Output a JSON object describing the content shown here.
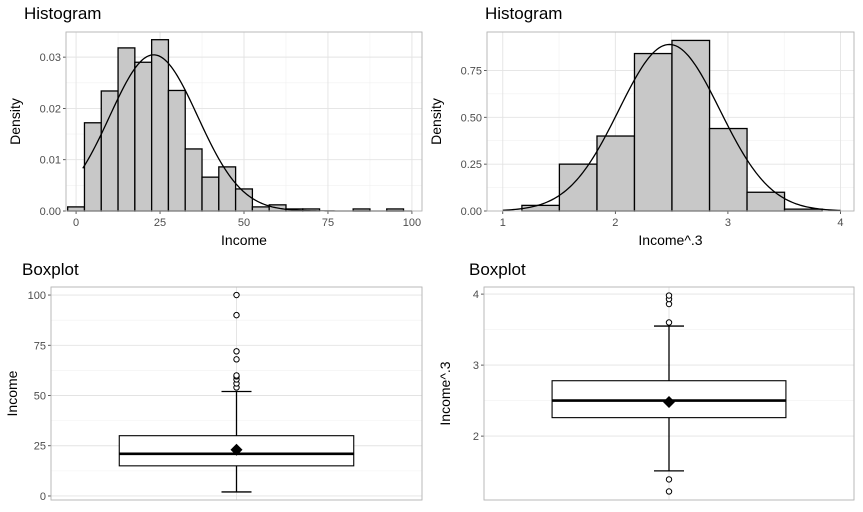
{
  "chart_data": [
    {
      "type": "histogram",
      "title": "Histogram",
      "xlabel": "Income",
      "ylabel": "Density",
      "xlim": [
        -3,
        103
      ],
      "ylim": [
        0,
        0.0349
      ],
      "xticks": [
        "0",
        "25",
        "50",
        "75",
        "100"
      ],
      "yticks": [
        "0.00",
        "0.01",
        "0.02",
        "0.03"
      ],
      "grid": true,
      "bin_width": 5,
      "bins": [
        {
          "x0": -2.5,
          "x1": 2.5,
          "density": 0.0008
        },
        {
          "x0": 2.5,
          "x1": 7.5,
          "density": 0.0172
        },
        {
          "x0": 7.5,
          "x1": 12.5,
          "density": 0.0234
        },
        {
          "x0": 12.5,
          "x1": 17.5,
          "density": 0.0318
        },
        {
          "x0": 17.5,
          "x1": 22.5,
          "density": 0.029
        },
        {
          "x0": 22.5,
          "x1": 27.5,
          "density": 0.0334
        },
        {
          "x0": 27.5,
          "x1": 32.5,
          "density": 0.0235
        },
        {
          "x0": 32.5,
          "x1": 37.5,
          "density": 0.0121
        },
        {
          "x0": 37.5,
          "x1": 42.5,
          "density": 0.0066
        },
        {
          "x0": 42.5,
          "x1": 47.5,
          "density": 0.0086
        },
        {
          "x0": 47.5,
          "x1": 52.5,
          "density": 0.0043
        },
        {
          "x0": 52.5,
          "x1": 57.5,
          "density": 0.0008
        },
        {
          "x0": 57.5,
          "x1": 62.5,
          "density": 0.0012
        },
        {
          "x0": 62.5,
          "x1": 67.5,
          "density": 0.0004
        },
        {
          "x0": 67.5,
          "x1": 72.5,
          "density": 0.0004
        },
        {
          "x0": 82.5,
          "x1": 87.5,
          "density": 0.0004
        },
        {
          "x0": 92.5,
          "x1": 97.5,
          "density": 0.0004
        }
      ],
      "curve": {
        "type": "normal",
        "mean": 23.1,
        "sd": 13.1,
        "x_from": 2,
        "x_to": 100
      }
    },
    {
      "type": "histogram",
      "title": "Histogram",
      "xlabel": "Income^.3",
      "ylabel": "Density",
      "xlim": [
        0.86,
        4.12
      ],
      "ylim": [
        0,
        0.955
      ],
      "xticks": [
        "1",
        "2",
        "3",
        "4"
      ],
      "yticks": [
        "0.00",
        "0.25",
        "0.50",
        "0.75"
      ],
      "grid": true,
      "bin_width": 0.333,
      "bins": [
        {
          "x0": 1.17,
          "x1": 1.503,
          "density": 0.03
        },
        {
          "x0": 1.503,
          "x1": 1.837,
          "density": 0.25
        },
        {
          "x0": 1.837,
          "x1": 2.17,
          "density": 0.4
        },
        {
          "x0": 2.17,
          "x1": 2.503,
          "density": 0.84
        },
        {
          "x0": 2.503,
          "x1": 2.837,
          "density": 0.91
        },
        {
          "x0": 2.837,
          "x1": 3.17,
          "density": 0.44
        },
        {
          "x0": 3.17,
          "x1": 3.503,
          "density": 0.1
        },
        {
          "x0": 3.503,
          "x1": 3.837,
          "density": 0.01
        }
      ],
      "curve": {
        "type": "normal",
        "mean": 2.48,
        "sd": 0.449,
        "x_from": 1.0,
        "x_to": 4.0
      }
    },
    {
      "type": "boxplot",
      "title": "Boxplot",
      "ylabel": "Income",
      "ylim": [
        -2,
        104
      ],
      "yticks": [
        "0",
        "25",
        "50",
        "75",
        "100"
      ],
      "grid": true,
      "box": {
        "q1": 15,
        "median": 21,
        "q3": 30,
        "whisker_low": 2,
        "whisker_high": 52,
        "mean": 23
      },
      "outliers": [
        54,
        56,
        58,
        59.5,
        60,
        68,
        72,
        90,
        100
      ]
    },
    {
      "type": "boxplot",
      "title": "Boxplot",
      "ylabel": "Income^.3",
      "ylim": [
        1.1,
        4.1
      ],
      "yticks": [
        "2",
        "3",
        "4"
      ],
      "grid": true,
      "box": {
        "q1": 2.26,
        "median": 2.5,
        "q3": 2.78,
        "whisker_low": 1.51,
        "whisker_high": 3.55,
        "mean": 2.48
      },
      "outliers": [
        1.22,
        1.39,
        3.6,
        3.86,
        3.93,
        3.98
      ]
    }
  ]
}
